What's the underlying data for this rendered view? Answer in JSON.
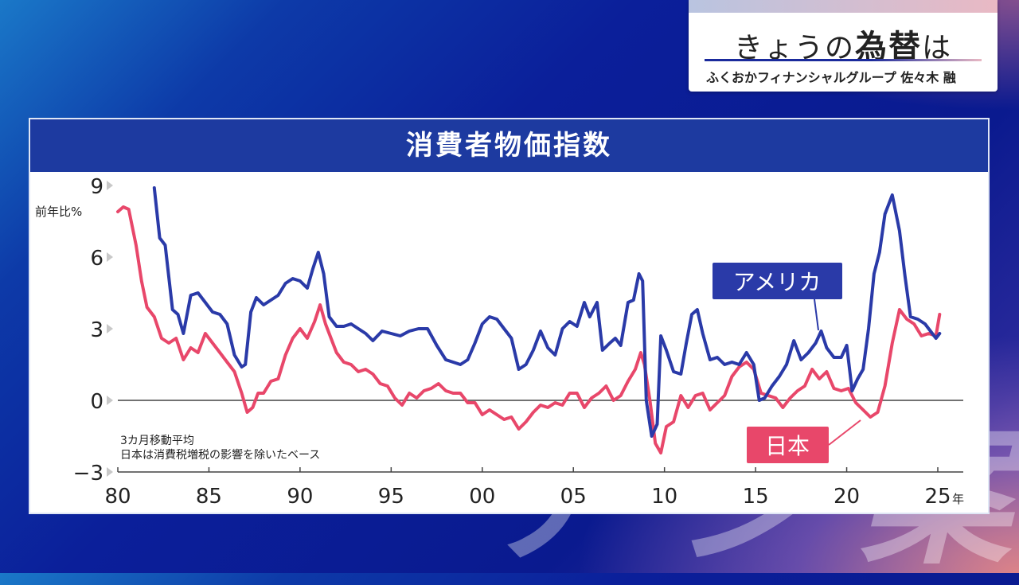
{
  "header": {
    "title_plain1": "きょうの",
    "title_bold": "為替",
    "title_plain2": "は",
    "subtitle": "ふくおかフィナンシャルグループ 佐々木 融"
  },
  "watermark": "ア ジ 案",
  "panel": {
    "title": "消費者物価指数"
  },
  "colors": {
    "usa": "#2a3aa8",
    "japan": "#e8476a",
    "header": "#1d3aa0"
  },
  "chart_data": {
    "type": "line",
    "title": "消費者物価指数",
    "ylabel": "前年比%",
    "xlabel_unit": "年",
    "ylim": [
      -3,
      9
    ],
    "xlim": [
      1980,
      2026
    ],
    "y_ticks": [
      "9",
      "6",
      "3",
      "0",
      "−3"
    ],
    "y_tick_values": [
      9,
      6,
      3,
      0,
      -3
    ],
    "x_ticks": [
      "80",
      "85",
      "90",
      "95",
      "00",
      "05",
      "10",
      "15",
      "20",
      "25"
    ],
    "x_tick_values": [
      1980,
      1985,
      1990,
      1995,
      2000,
      2005,
      2010,
      2015,
      2020,
      2025
    ],
    "notes": [
      "3カ月移動平均",
      "日本は消費税増税の影響を除いたベース"
    ],
    "series": [
      {
        "name": "アメリカ",
        "color": "#2a3aa8",
        "x": [
          1982.0,
          1982.3,
          1982.6,
          1983.0,
          1983.3,
          1983.6,
          1984.0,
          1984.4,
          1984.8,
          1985.2,
          1985.6,
          1986.0,
          1986.4,
          1986.8,
          1987.0,
          1987.3,
          1987.6,
          1988.0,
          1988.4,
          1988.8,
          1989.2,
          1989.6,
          1990.0,
          1990.4,
          1990.7,
          1991.0,
          1991.3,
          1991.6,
          1992.0,
          1992.4,
          1992.8,
          1993.2,
          1993.6,
          1994.0,
          1994.5,
          1995.0,
          1995.5,
          1996.0,
          1996.5,
          1997.0,
          1997.5,
          1998.0,
          1998.4,
          1998.8,
          1999.2,
          1999.6,
          2000.0,
          2000.4,
          2000.8,
          2001.2,
          2001.6,
          2002.0,
          2002.4,
          2002.8,
          2003.2,
          2003.6,
          2004.0,
          2004.4,
          2004.8,
          2005.2,
          2005.6,
          2005.9,
          2006.3,
          2006.6,
          2007.0,
          2007.3,
          2007.6,
          2008.0,
          2008.3,
          2008.6,
          2008.8,
          2009.0,
          2009.3,
          2009.6,
          2009.8,
          2010.1,
          2010.5,
          2010.9,
          2011.2,
          2011.5,
          2011.8,
          2012.1,
          2012.5,
          2012.9,
          2013.3,
          2013.7,
          2014.1,
          2014.5,
          2014.9,
          2015.2,
          2015.5,
          2015.9,
          2016.3,
          2016.7,
          2017.1,
          2017.5,
          2017.9,
          2018.3,
          2018.6,
          2018.9,
          2019.3,
          2019.7,
          2020.0,
          2020.3,
          2020.6,
          2020.9,
          2021.2,
          2021.5,
          2021.8,
          2022.1,
          2022.5,
          2022.9,
          2023.2,
          2023.5,
          2023.9,
          2024.3,
          2024.6,
          2024.9,
          2025.1
        ],
        "y": [
          8.9,
          6.8,
          6.5,
          3.8,
          3.6,
          2.8,
          4.4,
          4.5,
          4.1,
          3.7,
          3.6,
          3.2,
          1.9,
          1.4,
          1.5,
          3.7,
          4.3,
          4.0,
          4.2,
          4.4,
          4.9,
          5.1,
          5.0,
          4.7,
          5.5,
          6.2,
          5.3,
          3.5,
          3.1,
          3.1,
          3.2,
          3.0,
          2.8,
          2.5,
          2.9,
          2.8,
          2.7,
          2.9,
          3.0,
          3.0,
          2.3,
          1.7,
          1.6,
          1.5,
          1.7,
          2.4,
          3.2,
          3.5,
          3.4,
          3.0,
          2.6,
          1.3,
          1.5,
          2.1,
          2.9,
          2.2,
          1.9,
          3.0,
          3.3,
          3.1,
          4.1,
          3.5,
          4.1,
          2.1,
          2.4,
          2.6,
          2.3,
          4.1,
          4.2,
          5.3,
          5.0,
          0.0,
          -1.5,
          -1.0,
          2.7,
          2.1,
          1.2,
          1.1,
          2.4,
          3.6,
          3.8,
          2.8,
          1.7,
          1.8,
          1.5,
          1.6,
          1.5,
          2.0,
          1.5,
          0.0,
          0.1,
          0.6,
          1.0,
          1.5,
          2.5,
          1.7,
          2.0,
          2.4,
          2.9,
          2.2,
          1.8,
          1.8,
          2.3,
          0.4,
          0.9,
          1.3,
          3.0,
          5.3,
          6.2,
          7.8,
          8.6,
          7.1,
          5.2,
          3.5,
          3.4,
          3.2,
          2.9,
          2.6,
          2.8
        ]
      },
      {
        "name": "日本",
        "color": "#e8476a",
        "x": [
          1980.0,
          1980.3,
          1980.6,
          1981.0,
          1981.3,
          1981.6,
          1982.0,
          1982.4,
          1982.8,
          1983.2,
          1983.6,
          1984.0,
          1984.4,
          1984.8,
          1985.2,
          1985.6,
          1986.0,
          1986.4,
          1986.8,
          1987.1,
          1987.4,
          1987.7,
          1988.0,
          1988.4,
          1988.8,
          1989.2,
          1989.6,
          1990.0,
          1990.4,
          1990.8,
          1991.1,
          1991.4,
          1991.7,
          1992.0,
          1992.4,
          1992.8,
          1993.2,
          1993.6,
          1994.0,
          1994.4,
          1994.8,
          1995.2,
          1995.6,
          1996.0,
          1996.4,
          1996.8,
          1997.2,
          1997.6,
          1998.0,
          1998.4,
          1998.8,
          1999.2,
          1999.6,
          2000.0,
          2000.4,
          2000.8,
          2001.2,
          2001.6,
          2002.0,
          2002.4,
          2002.8,
          2003.2,
          2003.6,
          2004.0,
          2004.4,
          2004.8,
          2005.2,
          2005.6,
          2006.0,
          2006.4,
          2006.8,
          2007.2,
          2007.6,
          2008.0,
          2008.4,
          2008.7,
          2008.9,
          2009.2,
          2009.5,
          2009.8,
          2010.1,
          2010.5,
          2010.9,
          2011.3,
          2011.7,
          2012.1,
          2012.5,
          2012.9,
          2013.3,
          2013.7,
          2014.1,
          2014.5,
          2014.9,
          2015.3,
          2015.7,
          2016.1,
          2016.5,
          2016.9,
          2017.3,
          2017.7,
          2018.1,
          2018.5,
          2018.9,
          2019.3,
          2019.7,
          2020.1,
          2020.5,
          2020.9,
          2021.3,
          2021.7,
          2022.1,
          2022.5,
          2022.9,
          2023.3,
          2023.7,
          2024.1,
          2024.5,
          2024.9,
          2025.1
        ],
        "y": [
          7.9,
          8.1,
          8.0,
          6.5,
          5.0,
          3.9,
          3.5,
          2.6,
          2.4,
          2.6,
          1.7,
          2.2,
          2.0,
          2.8,
          2.4,
          2.0,
          1.6,
          1.2,
          0.3,
          -0.5,
          -0.3,
          0.3,
          0.3,
          0.8,
          0.9,
          1.9,
          2.6,
          3.0,
          2.6,
          3.3,
          4.0,
          3.2,
          2.6,
          2.0,
          1.6,
          1.5,
          1.2,
          1.3,
          1.1,
          0.7,
          0.6,
          0.1,
          -0.2,
          0.3,
          0.1,
          0.4,
          0.5,
          0.7,
          0.4,
          0.3,
          0.3,
          -0.1,
          -0.1,
          -0.6,
          -0.4,
          -0.6,
          -0.8,
          -0.7,
          -1.2,
          -0.9,
          -0.5,
          -0.2,
          -0.3,
          -0.1,
          -0.2,
          0.3,
          0.3,
          -0.3,
          0.1,
          0.3,
          0.6,
          0.0,
          0.2,
          0.8,
          1.3,
          2.0,
          1.5,
          0.0,
          -1.8,
          -2.2,
          -1.1,
          -0.9,
          0.2,
          -0.3,
          0.2,
          0.3,
          -0.4,
          -0.1,
          0.2,
          1.0,
          1.4,
          1.6,
          1.3,
          0.3,
          0.2,
          0.1,
          -0.3,
          0.1,
          0.4,
          0.6,
          1.3,
          0.9,
          1.2,
          0.5,
          0.4,
          0.5,
          -0.1,
          -0.4,
          -0.7,
          -0.5,
          0.6,
          2.4,
          3.8,
          3.4,
          3.2,
          2.7,
          2.8,
          2.7,
          3.6
        ]
      }
    ]
  }
}
